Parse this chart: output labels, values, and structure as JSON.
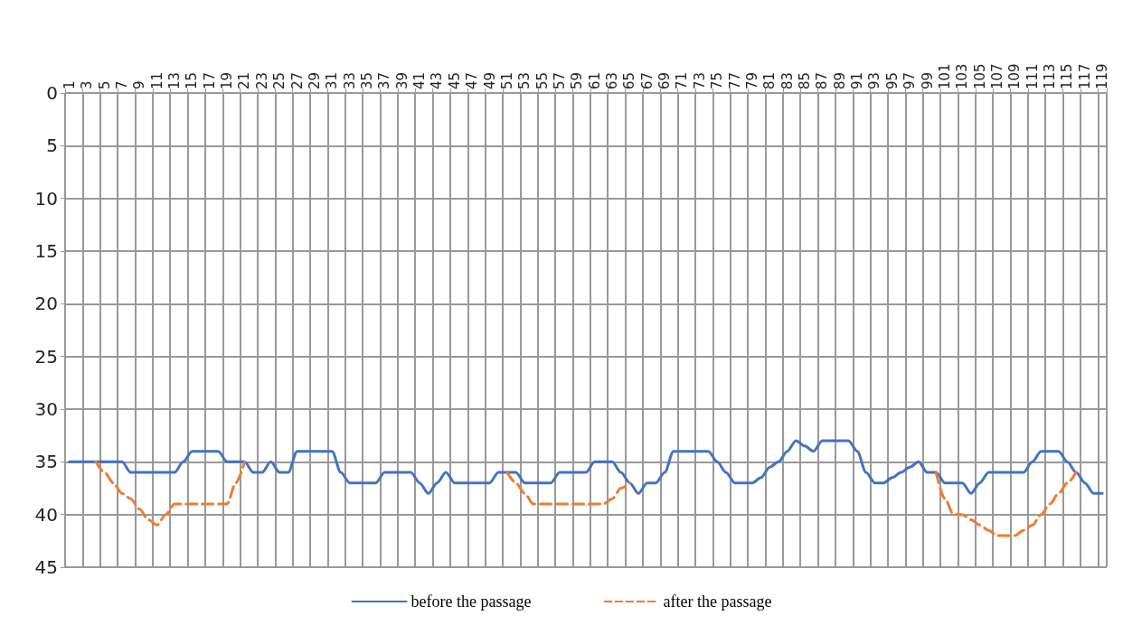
{
  "chart_data": {
    "type": "line",
    "categories": [
      "1",
      null,
      "3",
      null,
      "5",
      null,
      "7",
      null,
      "9",
      null,
      "11",
      null,
      "13",
      null,
      "15",
      null,
      "17",
      null,
      "19",
      null,
      "21",
      null,
      "23",
      null,
      "25",
      null,
      "27",
      null,
      "29",
      null,
      "31",
      null,
      "33",
      null,
      "35",
      null,
      "37",
      null,
      "39",
      null,
      "41",
      null,
      "43",
      null,
      "45",
      null,
      "47",
      null,
      "49",
      null,
      "51",
      null,
      "53",
      null,
      "55",
      null,
      "57",
      null,
      "59",
      null,
      "61",
      null,
      "63",
      null,
      "65",
      null,
      "67",
      null,
      "69",
      null,
      "71",
      null,
      "73",
      null,
      "75",
      null,
      "77",
      null,
      "79",
      null,
      "81",
      null,
      "83",
      null,
      "85",
      null,
      "87",
      null,
      "89",
      null,
      "91",
      null,
      "93",
      null,
      "95",
      null,
      "97",
      null,
      "99",
      null,
      "101",
      null,
      "103",
      null,
      "105",
      null,
      "107",
      null,
      "109",
      null,
      "111",
      null,
      "113",
      null,
      "115",
      null,
      "117",
      null,
      "119"
    ],
    "series": [
      {
        "name": "before the passage",
        "color": "#4472c4",
        "line_style": "solid",
        "values": [
          35,
          35,
          35,
          35,
          35,
          35,
          35,
          36,
          36,
          36,
          36,
          36,
          36,
          35,
          34,
          34,
          34,
          34,
          35,
          35,
          35,
          36,
          36,
          35,
          36,
          36,
          34,
          34,
          34,
          34,
          34,
          36,
          37,
          37,
          37,
          37,
          36,
          36,
          36,
          36,
          37,
          38,
          37,
          36,
          37,
          37,
          37,
          37,
          37,
          36,
          36,
          36,
          37,
          37,
          37,
          37,
          36,
          36,
          36,
          36,
          35,
          35,
          35,
          36,
          37,
          38,
          37,
          37,
          36,
          34,
          34,
          34,
          34,
          34,
          35,
          36,
          37,
          37,
          37,
          36.5,
          35.5,
          35,
          34,
          33,
          33.5,
          34,
          33,
          33,
          33,
          33,
          34,
          36,
          37,
          37,
          36.5,
          36,
          35.5,
          35,
          36,
          36,
          37,
          37,
          37,
          38,
          37,
          36,
          36,
          36,
          36,
          36,
          35,
          34,
          34,
          34,
          35,
          36,
          37,
          38,
          38
        ]
      },
      {
        "name": "after the passage",
        "color": "#ed7d31",
        "line_style": "dashed",
        "values": [
          null,
          null,
          null,
          35,
          36,
          37,
          38,
          38.5,
          39.5,
          40.5,
          41,
          40,
          39,
          39,
          39,
          39,
          39,
          39,
          39,
          37,
          35,
          null,
          null,
          null,
          null,
          null,
          null,
          null,
          null,
          null,
          null,
          null,
          null,
          null,
          null,
          null,
          null,
          null,
          null,
          null,
          null,
          null,
          null,
          null,
          null,
          null,
          null,
          null,
          null,
          null,
          36,
          37,
          38,
          39,
          39,
          39,
          39,
          39,
          39,
          39,
          39,
          39,
          38.5,
          37.5,
          37,
          null,
          null,
          null,
          null,
          null,
          null,
          null,
          null,
          null,
          null,
          null,
          null,
          null,
          null,
          null,
          null,
          null,
          null,
          null,
          null,
          null,
          null,
          null,
          null,
          null,
          null,
          null,
          null,
          null,
          null,
          null,
          null,
          null,
          null,
          36,
          38.5,
          40,
          40,
          40.5,
          41,
          41.5,
          42,
          42,
          42,
          41.5,
          41,
          40,
          39,
          38,
          37,
          36,
          null,
          null,
          null
        ]
      }
    ],
    "ylim": [
      45,
      0
    ],
    "yticks": [
      0,
      5,
      10,
      15,
      20,
      25,
      30,
      35,
      40,
      45
    ],
    "grid": true,
    "legend": "bottom",
    "marker": "none"
  }
}
